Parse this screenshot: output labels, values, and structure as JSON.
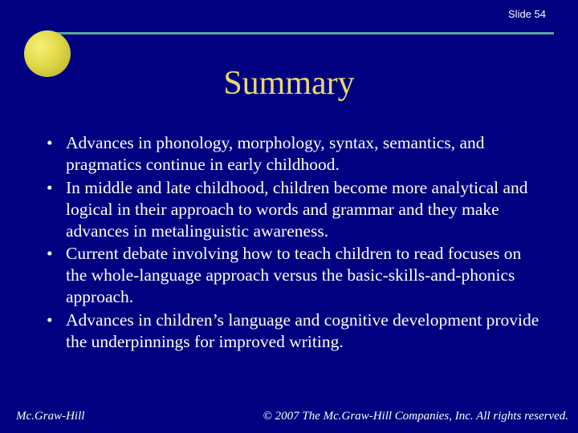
{
  "slide": {
    "number_label": "Slide 54",
    "background_color": "#000080",
    "divider_color": "#5aa89a",
    "circle_gradient_start": "#f5f078",
    "circle_gradient_end": "#b8a830",
    "title": "Summary",
    "title_color": "#e8d870",
    "title_fontsize": 42,
    "body_fontsize": 21.5,
    "body_color": "#ffffff",
    "bullets": [
      "Advances in phonology, morphology, syntax, semantics, and pragmatics continue in early childhood.",
      "In middle and late childhood, children become more analytical and logical in their approach to words and grammar and they make advances in metalinguistic awareness.",
      "Current debate involving how to teach children to read focuses on the whole-language approach versus the basic-skills-and-phonics approach.",
      "Advances in children’s language and cognitive development provide the underpinnings for improved writing."
    ],
    "footer_left": "Mc.Graw-Hill",
    "footer_right": "© 2007 The Mc.Graw-Hill Companies, Inc.  All rights reserved."
  }
}
